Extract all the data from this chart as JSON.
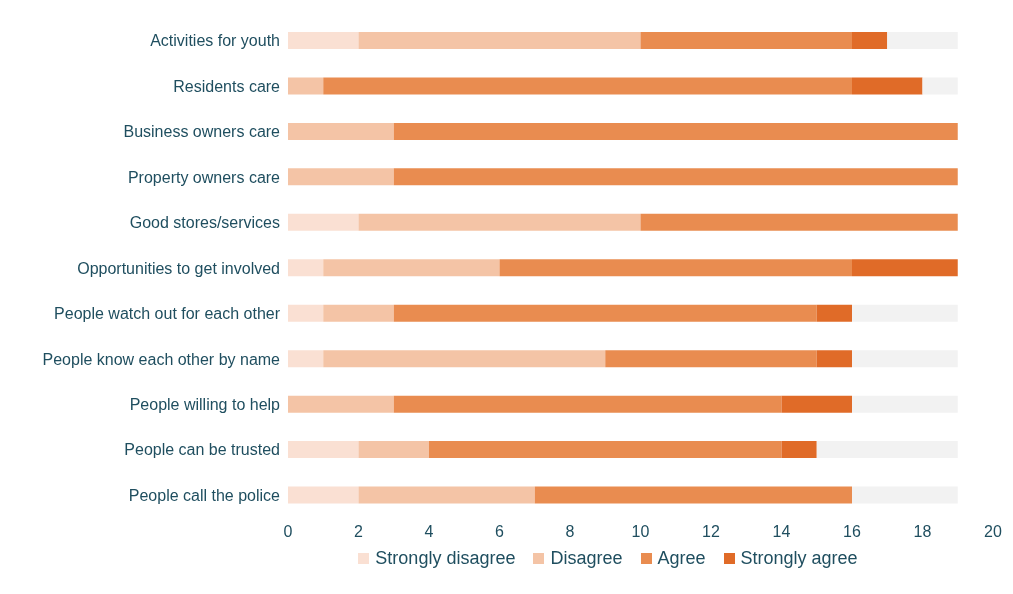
{
  "chart_data": {
    "type": "bar",
    "orientation": "horizontal",
    "stacked": true,
    "categories": [
      "Activities for youth",
      "Residents care",
      "Business owners care",
      "Property owners care",
      "Good stores/services",
      "Opportunities to get involved",
      "People watch out for each other",
      "People know each other by name",
      "People willing to help",
      "People can be trusted",
      "People call the police"
    ],
    "series": [
      {
        "name": "Strongly disagree",
        "color": "#fae0d3",
        "values": [
          2,
          0,
          0,
          0,
          2,
          1,
          1,
          1,
          0,
          2,
          2
        ]
      },
      {
        "name": "Disagree",
        "color": "#f4c4a6",
        "values": [
          8,
          1,
          3,
          3,
          8,
          5,
          2,
          8,
          3,
          2,
          5
        ]
      },
      {
        "name": "Agree",
        "color": "#e98c50",
        "values": [
          6,
          15,
          16,
          16,
          9,
          10,
          12,
          6,
          11,
          10,
          9
        ]
      },
      {
        "name": "Strongly agree",
        "color": "#e06b28",
        "values": [
          1,
          2,
          0,
          0,
          0,
          3,
          1,
          1,
          2,
          1,
          0
        ]
      },
      {
        "color": "#f2f2f2",
        "values": [
          2,
          1,
          0,
          0,
          0,
          0,
          3,
          3,
          3,
          4,
          3
        ]
      }
    ],
    "xlim": [
      0,
      20
    ],
    "xticks": [
      0,
      2,
      4,
      6,
      8,
      10,
      12,
      14,
      16,
      18,
      20
    ],
    "legend": "bottom"
  }
}
